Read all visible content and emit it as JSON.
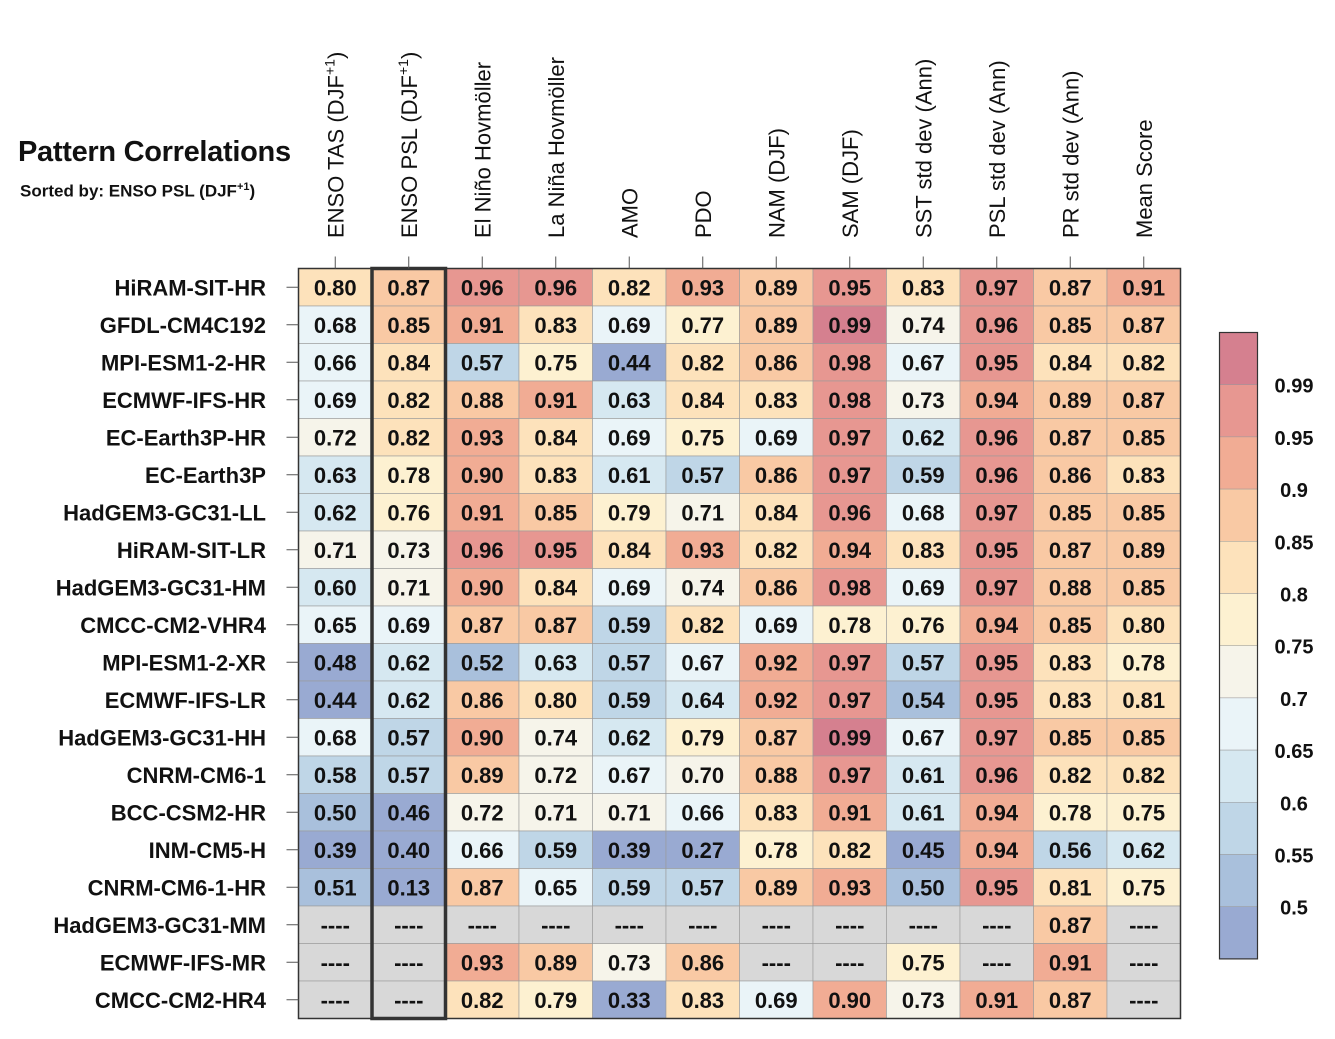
{
  "chart_data": {
    "type": "heatmap",
    "title": "Pattern Correlations",
    "subtitle_text": "Sorted by: ENSO PSL (DJF",
    "subtitle_sup": "+1",
    "subtitle_end": ")",
    "columns": [
      {
        "label": "ENSO TAS (DJF",
        "sup": "+1",
        "end": ")"
      },
      {
        "label": "ENSO PSL (DJF",
        "sup": "+1",
        "end": ")"
      },
      {
        "label": "El Niño Hovmöller"
      },
      {
        "label": "La Niña Hovmöller"
      },
      {
        "label": "AMO"
      },
      {
        "label": "PDO"
      },
      {
        "label": "NAM (DJF)"
      },
      {
        "label": "SAM (DJF)"
      },
      {
        "label": "SST std dev (Ann)"
      },
      {
        "label": "PSL std dev (Ann)"
      },
      {
        "label": "PR std dev (Ann)"
      },
      {
        "label": "Mean Score"
      }
    ],
    "highlighted_column": 1,
    "missing_label": "----",
    "rows": [
      {
        "name": "HiRAM-SIT-HR",
        "values": [
          0.8,
          0.87,
          0.96,
          0.96,
          0.82,
          0.93,
          0.89,
          0.95,
          0.83,
          0.97,
          0.87,
          0.91
        ]
      },
      {
        "name": "GFDL-CM4C192",
        "values": [
          0.68,
          0.85,
          0.91,
          0.83,
          0.69,
          0.77,
          0.89,
          0.99,
          0.74,
          0.96,
          0.85,
          0.87
        ]
      },
      {
        "name": "MPI-ESM1-2-HR",
        "values": [
          0.66,
          0.84,
          0.57,
          0.75,
          0.44,
          0.82,
          0.86,
          0.98,
          0.67,
          0.95,
          0.84,
          0.82
        ]
      },
      {
        "name": "ECMWF-IFS-HR",
        "values": [
          0.69,
          0.82,
          0.88,
          0.91,
          0.63,
          0.84,
          0.83,
          0.98,
          0.73,
          0.94,
          0.89,
          0.87
        ]
      },
      {
        "name": "EC-Earth3P-HR",
        "values": [
          0.72,
          0.82,
          0.93,
          0.84,
          0.69,
          0.75,
          0.69,
          0.97,
          0.62,
          0.96,
          0.87,
          0.85
        ]
      },
      {
        "name": "EC-Earth3P",
        "values": [
          0.63,
          0.78,
          0.9,
          0.83,
          0.61,
          0.57,
          0.86,
          0.97,
          0.59,
          0.96,
          0.86,
          0.83
        ]
      },
      {
        "name": "HadGEM3-GC31-LL",
        "values": [
          0.62,
          0.76,
          0.91,
          0.85,
          0.79,
          0.71,
          0.84,
          0.96,
          0.68,
          0.97,
          0.85,
          0.85
        ]
      },
      {
        "name": "HiRAM-SIT-LR",
        "values": [
          0.71,
          0.73,
          0.96,
          0.95,
          0.84,
          0.93,
          0.82,
          0.94,
          0.83,
          0.95,
          0.87,
          0.89
        ]
      },
      {
        "name": "HadGEM3-GC31-HM",
        "values": [
          0.6,
          0.71,
          0.9,
          0.84,
          0.69,
          0.74,
          0.86,
          0.98,
          0.69,
          0.97,
          0.88,
          0.85
        ]
      },
      {
        "name": "CMCC-CM2-VHR4",
        "values": [
          0.65,
          0.69,
          0.87,
          0.87,
          0.59,
          0.82,
          0.69,
          0.78,
          0.76,
          0.94,
          0.85,
          0.8
        ]
      },
      {
        "name": "MPI-ESM1-2-XR",
        "values": [
          0.48,
          0.62,
          0.52,
          0.63,
          0.57,
          0.67,
          0.92,
          0.97,
          0.57,
          0.95,
          0.83,
          0.78
        ]
      },
      {
        "name": "ECMWF-IFS-LR",
        "values": [
          0.44,
          0.62,
          0.86,
          0.8,
          0.59,
          0.64,
          0.92,
          0.97,
          0.54,
          0.95,
          0.83,
          0.81
        ]
      },
      {
        "name": "HadGEM3-GC31-HH",
        "values": [
          0.68,
          0.57,
          0.9,
          0.74,
          0.62,
          0.79,
          0.87,
          0.99,
          0.67,
          0.97,
          0.85,
          0.85
        ]
      },
      {
        "name": "CNRM-CM6-1",
        "values": [
          0.58,
          0.57,
          0.89,
          0.72,
          0.67,
          0.7,
          0.88,
          0.97,
          0.61,
          0.96,
          0.82,
          0.82
        ]
      },
      {
        "name": "BCC-CSM2-HR",
        "values": [
          0.5,
          0.46,
          0.72,
          0.71,
          0.71,
          0.66,
          0.83,
          0.91,
          0.61,
          0.94,
          0.78,
          0.75
        ]
      },
      {
        "name": "INM-CM5-H",
        "values": [
          0.39,
          0.4,
          0.66,
          0.59,
          0.39,
          0.27,
          0.78,
          0.82,
          0.45,
          0.94,
          0.56,
          0.62
        ]
      },
      {
        "name": "CNRM-CM6-1-HR",
        "values": [
          0.51,
          0.13,
          0.87,
          0.65,
          0.59,
          0.57,
          0.89,
          0.93,
          0.5,
          0.95,
          0.81,
          0.75
        ]
      },
      {
        "name": "HadGEM3-GC31-MM",
        "values": [
          null,
          null,
          null,
          null,
          null,
          null,
          null,
          null,
          null,
          null,
          0.87,
          null
        ]
      },
      {
        "name": "ECMWF-IFS-MR",
        "values": [
          null,
          null,
          0.93,
          0.89,
          0.73,
          0.86,
          null,
          null,
          0.75,
          null,
          0.91,
          null
        ]
      },
      {
        "name": "CMCC-CM2-HR4",
        "values": [
          null,
          null,
          0.82,
          0.79,
          0.33,
          0.83,
          0.69,
          0.9,
          0.73,
          0.91,
          0.87,
          null
        ]
      }
    ],
    "colorbar": {
      "ticks": [
        "0.99",
        "0.95",
        "0.9",
        "0.85",
        "0.8",
        "0.75",
        "0.7",
        "0.65",
        "0.6",
        "0.55",
        "0.5"
      ],
      "thresholds": [
        0.5,
        0.55,
        0.6,
        0.65,
        0.7,
        0.75,
        0.8,
        0.85,
        0.9,
        0.95,
        0.99
      ],
      "colors": [
        "#99aad2",
        "#a9c0dc",
        "#bfd6e7",
        "#d6e8f1",
        "#eaf4f8",
        "#f6f4ea",
        "#fdf1d1",
        "#fde2bb",
        "#f9c9a4",
        "#f1ac94",
        "#e79791",
        "#d5808f"
      ],
      "missing_color": "#d8d8d8"
    }
  }
}
